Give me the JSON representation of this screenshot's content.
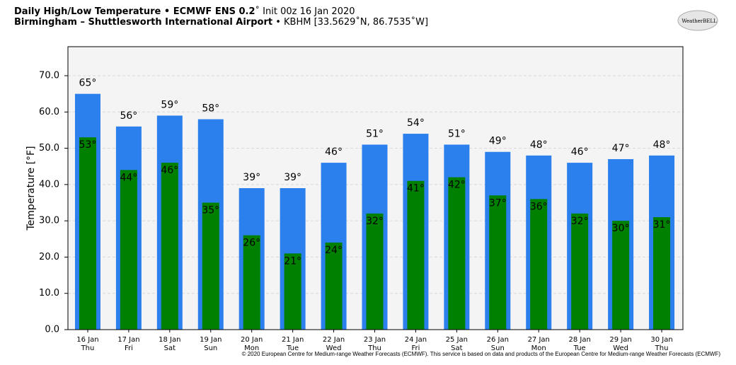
{
  "chart_data": {
    "type": "bar",
    "title_bold": "Daily High/Low Temperature • ECMWF ENS 0.2",
    "title_rest": "˚ Init 00z 16 Jan 2020",
    "subtitle_bold": "Birmingham – Shuttlesworth International Airport",
    "subtitle_rest": " • KBHM [33.5629˚N, 86.7535˚W]",
    "logo": "WeatherBELL",
    "footer": "© 2020 European Centre for Medium-range Weather Forecasts (ECMWF). This service is based on data and products of the European Centre for Medium-range Weather Forecasts (ECMWF)",
    "y_label": "Temperature [°F]",
    "categories": [
      "16 Jan",
      "17 Jan",
      "18 Jan",
      "19 Jan",
      "20 Jan",
      "21 Jan",
      "22 Jan",
      "23 Jan",
      "24 Jan",
      "25 Jan",
      "26 Jan",
      "27 Jan",
      "28 Jan",
      "29 Jan",
      "30 Jan"
    ],
    "weekdays": [
      "Thu",
      "Fri",
      "Sat",
      "Sun",
      "Mon",
      "Tue",
      "Wed",
      "Thu",
      "Fri",
      "Sat",
      "Sun",
      "Mon",
      "Tue",
      "Wed",
      "Thu"
    ],
    "series": [
      {
        "color": "#2b80ed",
        "values": [
          65,
          56,
          59,
          58,
          39,
          39,
          46,
          51,
          54,
          51,
          49,
          48,
          46,
          47,
          48
        ],
        "value_labels": [
          "65°",
          "56°",
          "59°",
          "58°",
          "39°",
          "39°",
          "46°",
          "51°",
          "54°",
          "51°",
          "49°",
          "48°",
          "46°",
          "47°",
          "48°"
        ]
      },
      {
        "color": "#008000",
        "values": [
          53,
          44,
          46,
          35,
          26,
          21,
          24,
          32,
          41,
          42,
          37,
          36,
          32,
          30,
          31
        ],
        "value_labels": [
          "53°",
          "44°",
          "46°",
          "35°",
          "26°",
          "21°",
          "24°",
          "32°",
          "41°",
          "42°",
          "37°",
          "36°",
          "32°",
          "30°",
          "31°"
        ]
      }
    ],
    "ylim": [
      0,
      78
    ],
    "yticks": [
      {
        "value": 0,
        "label": "0.0"
      },
      {
        "value": 10,
        "label": "10.0"
      },
      {
        "value": 20,
        "label": "20.0"
      },
      {
        "value": 30,
        "label": "30.0"
      },
      {
        "value": 40,
        "label": "40.0"
      },
      {
        "value": 50,
        "label": "50.0"
      },
      {
        "value": 60,
        "label": "60.0"
      },
      {
        "value": 70,
        "label": "70.0"
      }
    ],
    "grid": true
  }
}
